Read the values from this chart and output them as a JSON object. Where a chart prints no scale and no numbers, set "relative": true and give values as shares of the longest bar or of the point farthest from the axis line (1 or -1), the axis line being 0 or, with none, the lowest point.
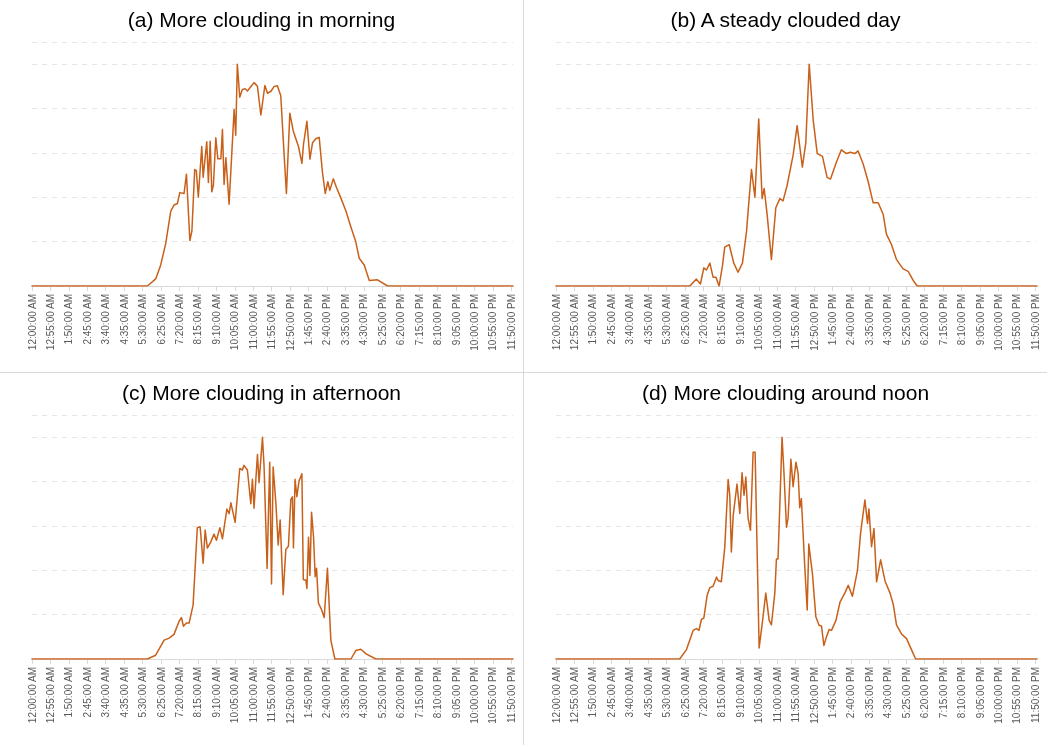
{
  "chart_data": [
    {
      "type": "line",
      "title": "(a) More clouding in morning",
      "relative": true,
      "grid": "y",
      "color": "#c8601a",
      "xlim": [
        0,
        23.9167
      ],
      "xticks": [
        {
          "value": 0,
          "label": "12:00:00 AM"
        },
        {
          "value": 0.9167,
          "label": "12:55:00 AM"
        },
        {
          "value": 1.8333,
          "label": "1:50:00 AM"
        },
        {
          "value": 2.75,
          "label": "2:45:00 AM"
        },
        {
          "value": 3.6667,
          "label": "3:40:00 AM"
        },
        {
          "value": 4.5833,
          "label": "4:35:00 AM"
        },
        {
          "value": 5.5,
          "label": "5:30:00 AM"
        },
        {
          "value": 6.4167,
          "label": "6:25:00 AM"
        },
        {
          "value": 7.3333,
          "label": "7:20:00 AM"
        },
        {
          "value": 8.25,
          "label": "8:15:00 AM"
        },
        {
          "value": 9.1667,
          "label": "9:10:00 AM"
        },
        {
          "value": 10.0833,
          "label": "10:05:00 AM"
        },
        {
          "value": 11,
          "label": "11:00:00 AM"
        },
        {
          "value": 11.9167,
          "label": "11:55:00 AM"
        },
        {
          "value": 12.8333,
          "label": "12:50:00 PM"
        },
        {
          "value": 13.75,
          "label": "1:45:00 PM"
        },
        {
          "value": 14.6667,
          "label": "2:40:00 PM"
        },
        {
          "value": 15.5833,
          "label": "3:35:00 PM"
        },
        {
          "value": 16.5,
          "label": "4:30:00 PM"
        },
        {
          "value": 17.4167,
          "label": "5:25:00 PM"
        },
        {
          "value": 18.3333,
          "label": "6:20:00 PM"
        },
        {
          "value": 19.25,
          "label": "7:15:00 PM"
        },
        {
          "value": 20.1667,
          "label": "8:10:00 PM"
        },
        {
          "value": 21.0833,
          "label": "9:05:00 PM"
        },
        {
          "value": 22,
          "label": "10:00:00 PM"
        },
        {
          "value": 22.9167,
          "label": "10:55:00 PM"
        },
        {
          "value": 23.8333,
          "label": "11:50:00 PM"
        }
      ],
      "x": [
        0,
        5.74,
        6.15,
        6.4,
        6.65,
        6.9,
        7.06,
        7.23,
        7.35,
        7.56,
        7.68,
        7.85,
        7.95,
        8.09,
        8.17,
        8.27,
        8.44,
        8.51,
        8.69,
        8.77,
        8.86,
        8.94,
        9.02,
        9.14,
        9.24,
        9.39,
        9.47,
        9.55,
        9.64,
        9.8,
        10.05,
        10.13,
        10.21,
        10.33,
        10.46,
        10.6,
        10.71,
        10.83,
        11.04,
        11.21,
        11.38,
        11.58,
        11.71,
        11.88,
        12.04,
        12.2,
        12.37,
        12.49,
        12.65,
        12.82,
        12.99,
        13.25,
        13.42,
        13.5,
        13.67,
        13.82,
        13.95,
        14.11,
        14.28,
        14.44,
        14.58,
        14.71,
        14.81,
        14.98,
        15.14,
        15.36,
        15.61,
        15.86,
        16.1,
        16.27,
        16.52,
        16.77,
        17.18,
        17.68,
        23.9167
      ],
      "values": [
        0,
        0,
        0.032,
        0.095,
        0.192,
        0.338,
        0.365,
        0.372,
        0.421,
        0.417,
        0.504,
        0.205,
        0.247,
        0.525,
        0.52,
        0.4,
        0.629,
        0.49,
        0.65,
        0.467,
        0.653,
        0.425,
        0.455,
        0.668,
        0.574,
        0.574,
        0.705,
        0.458,
        0.578,
        0.369,
        0.796,
        0.68,
        1.0,
        0.851,
        0.886,
        0.889,
        0.879,
        0.893,
        0.917,
        0.9,
        0.771,
        0.904,
        0.869,
        0.878,
        0.9,
        0.903,
        0.858,
        0.664,
        0.417,
        0.779,
        0.699,
        0.629,
        0.553,
        0.639,
        0.743,
        0.572,
        0.646,
        0.664,
        0.67,
        0.514,
        0.417,
        0.47,
        0.431,
        0.483,
        0.444,
        0.396,
        0.338,
        0.265,
        0.199,
        0.125,
        0.095,
        0.025,
        0.028,
        0,
        0
      ]
    },
    {
      "type": "line",
      "title": "(b) A steady clouded day",
      "relative": true,
      "grid": "y",
      "color": "#c8601a",
      "xlim": [
        0,
        23.9167
      ],
      "xticks": [
        {
          "value": 0,
          "label": "12:00:00 AM"
        },
        {
          "value": 0.9167,
          "label": "12:55:00 AM"
        },
        {
          "value": 1.8333,
          "label": "1:50:00 AM"
        },
        {
          "value": 2.75,
          "label": "2:45:00 AM"
        },
        {
          "value": 3.6667,
          "label": "3:40:00 AM"
        },
        {
          "value": 4.5833,
          "label": "4:35:00 AM"
        },
        {
          "value": 5.5,
          "label": "5:30:00 AM"
        },
        {
          "value": 6.4167,
          "label": "6:25:00 AM"
        },
        {
          "value": 7.3333,
          "label": "7:20:00 AM"
        },
        {
          "value": 8.25,
          "label": "8:15:00 AM"
        },
        {
          "value": 9.1667,
          "label": "9:10:00 AM"
        },
        {
          "value": 10.0833,
          "label": "10:05:00 AM"
        },
        {
          "value": 11,
          "label": "11:00:00 AM"
        },
        {
          "value": 11.9167,
          "label": "11:55:00 AM"
        },
        {
          "value": 12.8333,
          "label": "12:50:00 PM"
        },
        {
          "value": 13.75,
          "label": "1:45:00 PM"
        },
        {
          "value": 14.6667,
          "label": "2:40:00 PM"
        },
        {
          "value": 15.5833,
          "label": "3:35:00 PM"
        },
        {
          "value": 16.5,
          "label": "4:30:00 PM"
        },
        {
          "value": 17.4167,
          "label": "5:25:00 PM"
        },
        {
          "value": 18.3333,
          "label": "6:20:00 PM"
        },
        {
          "value": 19.25,
          "label": "7:15:00 PM"
        },
        {
          "value": 20.1667,
          "label": "8:10:00 PM"
        },
        {
          "value": 21.0833,
          "label": "9:05:00 PM"
        },
        {
          "value": 22,
          "label": "10:00:00 PM"
        },
        {
          "value": 22.9167,
          "label": "10:55:00 PM"
        },
        {
          "value": 23.8333,
          "label": "11:50:00 PM"
        }
      ],
      "x": [
        0,
        6.65,
        6.98,
        7.18,
        7.35,
        7.48,
        7.65,
        7.81,
        7.95,
        8.11,
        8.27,
        8.39,
        8.61,
        8.84,
        9.05,
        9.27,
        9.47,
        9.72,
        9.89,
        10.08,
        10.25,
        10.35,
        10.5,
        10.71,
        10.93,
        11.13,
        11.29,
        11.49,
        11.79,
        11.99,
        12.25,
        12.42,
        12.59,
        12.79,
        12.99,
        13.25,
        13.48,
        13.65,
        13.95,
        14.19,
        14.44,
        14.64,
        14.86,
        15.02,
        15.27,
        15.52,
        15.77,
        16.02,
        16.27,
        16.43,
        16.68,
        16.93,
        17.26,
        17.51,
        17.76,
        17.96,
        23.9167
      ],
      "values": [
        0,
        0,
        0.031,
        0.009,
        0.082,
        0.072,
        0.103,
        0.04,
        0.04,
        0,
        0.087,
        0.175,
        0.187,
        0.103,
        0.062,
        0.103,
        0.244,
        0.525,
        0.4,
        0.753,
        0.394,
        0.44,
        0.321,
        0.119,
        0.353,
        0.394,
        0.384,
        0.453,
        0.59,
        0.723,
        0.536,
        0.645,
        1.0,
        0.747,
        0.597,
        0.584,
        0.49,
        0.482,
        0.56,
        0.614,
        0.597,
        0.603,
        0.597,
        0.609,
        0.551,
        0.471,
        0.375,
        0.375,
        0.322,
        0.234,
        0.187,
        0.119,
        0.077,
        0.066,
        0.025,
        0,
        0
      ]
    },
    {
      "type": "line",
      "title": "(c) More clouding in afternoon",
      "relative": true,
      "grid": "y",
      "color": "#c8601a",
      "xlim": [
        0,
        23.9167
      ],
      "xticks": [
        {
          "value": 0,
          "label": "12:00:00 AM"
        },
        {
          "value": 0.9167,
          "label": "12:55:00 AM"
        },
        {
          "value": 1.8333,
          "label": "1:50:00 AM"
        },
        {
          "value": 2.75,
          "label": "2:45:00 AM"
        },
        {
          "value": 3.6667,
          "label": "3:40:00 AM"
        },
        {
          "value": 4.5833,
          "label": "4:35:00 AM"
        },
        {
          "value": 5.5,
          "label": "5:30:00 AM"
        },
        {
          "value": 6.4167,
          "label": "6:25:00 AM"
        },
        {
          "value": 7.3333,
          "label": "7:20:00 AM"
        },
        {
          "value": 8.25,
          "label": "8:15:00 AM"
        },
        {
          "value": 9.1667,
          "label": "9:10:00 AM"
        },
        {
          "value": 10.0833,
          "label": "10:05:00 AM"
        },
        {
          "value": 11,
          "label": "11:00:00 AM"
        },
        {
          "value": 11.9167,
          "label": "11:55:00 AM"
        },
        {
          "value": 12.8333,
          "label": "12:50:00 PM"
        },
        {
          "value": 13.75,
          "label": "1:45:00 PM"
        },
        {
          "value": 14.6667,
          "label": "2:40:00 PM"
        },
        {
          "value": 15.5833,
          "label": "3:35:00 PM"
        },
        {
          "value": 16.5,
          "label": "4:30:00 PM"
        },
        {
          "value": 17.4167,
          "label": "5:25:00 PM"
        },
        {
          "value": 18.3333,
          "label": "6:20:00 PM"
        },
        {
          "value": 19.25,
          "label": "7:15:00 PM"
        },
        {
          "value": 20.1667,
          "label": "8:10:00 PM"
        },
        {
          "value": 21.0833,
          "label": "9:05:00 PM"
        },
        {
          "value": 22,
          "label": "10:00:00 PM"
        },
        {
          "value": 22.9167,
          "label": "10:55:00 PM"
        },
        {
          "value": 23.8333,
          "label": "11:50:00 PM"
        }
      ],
      "x": [
        0,
        5.74,
        6.15,
        6.57,
        6.82,
        7.06,
        7.31,
        7.43,
        7.53,
        7.68,
        7.81,
        8.01,
        8.22,
        8.36,
        8.51,
        8.61,
        8.72,
        8.89,
        9.05,
        9.17,
        9.34,
        9.47,
        9.69,
        9.8,
        9.89,
        10.1,
        10.33,
        10.46,
        10.54,
        10.71,
        10.88,
        10.96,
        11.04,
        11.21,
        11.29,
        11.46,
        11.54,
        11.69,
        11.82,
        11.91,
        11.99,
        12.13,
        12.24,
        12.34,
        12.49,
        12.62,
        12.75,
        12.87,
        12.95,
        13.0,
        13.08,
        13.17,
        13.28,
        13.42,
        13.49,
        13.62,
        13.67,
        13.75,
        13.82,
        13.9,
        14.0,
        14.08,
        14.15,
        14.24,
        14.41,
        14.53,
        14.69,
        14.86,
        15.06,
        15.86,
        16.1,
        16.35,
        16.63,
        17.1,
        23.9167
      ],
      "values": [
        0,
        0,
        0.017,
        0.085,
        0.094,
        0.111,
        0.169,
        0.187,
        0.148,
        0.162,
        0.162,
        0.243,
        0.592,
        0.596,
        0.432,
        0.581,
        0.5,
        0.528,
        0.563,
        0.535,
        0.592,
        0.542,
        0.676,
        0.655,
        0.704,
        0.616,
        0.859,
        0.852,
        0.873,
        0.852,
        0.7,
        0.81,
        0.68,
        0.922,
        0.795,
        1.0,
        0.866,
        0.408,
        0.887,
        0.338,
        0.866,
        0.697,
        0.514,
        0.627,
        0.29,
        0.494,
        0.508,
        0.719,
        0.731,
        0.501,
        0.81,
        0.732,
        0.803,
        0.835,
        0.358,
        0.355,
        0.318,
        0.549,
        0.376,
        0.662,
        0.549,
        0.371,
        0.409,
        0.253,
        0.22,
        0.187,
        0.409,
        0.084,
        0,
        0,
        0.038,
        0.044,
        0.022,
        0,
        0
      ]
    },
    {
      "type": "line",
      "title": "(d) More clouding around noon",
      "relative": true,
      "grid": "y",
      "color": "#c8601a",
      "xlim": [
        0,
        23.9167
      ],
      "xticks": [
        {
          "value": 0,
          "label": "12:00:00 AM"
        },
        {
          "value": 0.9167,
          "label": "12:55:00 AM"
        },
        {
          "value": 1.8333,
          "label": "1:50:00 AM"
        },
        {
          "value": 2.75,
          "label": "2:45:00 AM"
        },
        {
          "value": 3.6667,
          "label": "3:40:00 AM"
        },
        {
          "value": 4.5833,
          "label": "4:35:00 AM"
        },
        {
          "value": 5.5,
          "label": "5:30:00 AM"
        },
        {
          "value": 6.4167,
          "label": "6:25:00 AM"
        },
        {
          "value": 7.3333,
          "label": "7:20:00 AM"
        },
        {
          "value": 8.25,
          "label": "8:15:00 AM"
        },
        {
          "value": 9.1667,
          "label": "9:10:00 AM"
        },
        {
          "value": 10.0833,
          "label": "10:05:00 AM"
        },
        {
          "value": 11,
          "label": "11:00:00 AM"
        },
        {
          "value": 11.9167,
          "label": "11:55:00 AM"
        },
        {
          "value": 12.8333,
          "label": "12:50:00 PM"
        },
        {
          "value": 13.75,
          "label": "1:45:00 PM"
        },
        {
          "value": 14.6667,
          "label": "2:40:00 PM"
        },
        {
          "value": 15.5833,
          "label": "3:35:00 PM"
        },
        {
          "value": 16.5,
          "label": "4:30:00 PM"
        },
        {
          "value": 17.4167,
          "label": "5:25:00 PM"
        },
        {
          "value": 18.3333,
          "label": "6:20:00 PM"
        },
        {
          "value": 19.25,
          "label": "7:15:00 PM"
        },
        {
          "value": 20.1667,
          "label": "8:10:00 PM"
        },
        {
          "value": 21.0833,
          "label": "9:05:00 PM"
        },
        {
          "value": 22,
          "label": "10:00:00 PM"
        },
        {
          "value": 22.9167,
          "label": "10:55:00 PM"
        },
        {
          "value": 23.8333,
          "label": "11:50:00 PM"
        }
      ],
      "x": [
        0,
        6.15,
        6.48,
        6.82,
        6.98,
        7.11,
        7.23,
        7.35,
        7.51,
        7.65,
        7.81,
        7.98,
        8.06,
        8.22,
        8.39,
        8.56,
        8.64,
        8.72,
        8.81,
        9.0,
        9.14,
        9.25,
        9.35,
        9.44,
        9.55,
        9.67,
        9.8,
        9.9,
        10.1,
        10.26,
        10.43,
        10.6,
        10.71,
        10.88,
        10.96,
        11.04,
        11.13,
        11.24,
        11.33,
        11.46,
        11.54,
        11.68,
        11.79,
        11.93,
        12.04,
        12.12,
        12.2,
        12.37,
        12.49,
        12.57,
        12.75,
        12.92,
        13.08,
        13.2,
        13.32,
        13.42,
        13.58,
        13.7,
        13.92,
        14.12,
        14.36,
        14.53,
        14.74,
        14.99,
        15.14,
        15.36,
        15.49,
        15.56,
        15.69,
        15.81,
        15.94,
        16.14,
        16.36,
        16.61,
        16.77,
        16.93,
        17.18,
        17.43,
        17.68,
        17.88,
        23.9167
      ],
      "values": [
        0,
        0,
        0.041,
        0.129,
        0.137,
        0.129,
        0.178,
        0.184,
        0.285,
        0.322,
        0.328,
        0.369,
        0.354,
        0.348,
        0.502,
        0.809,
        0.738,
        0.482,
        0.646,
        0.789,
        0.656,
        0.84,
        0.738,
        0.82,
        0.635,
        0.58,
        0.932,
        0.932,
        0.05,
        0.164,
        0.297,
        0.174,
        0.154,
        0.297,
        0.451,
        0.451,
        0.697,
        1.0,
        0.85,
        0.594,
        0.635,
        0.9,
        0.777,
        0.887,
        0.836,
        0.682,
        0.723,
        0.416,
        0.221,
        0.518,
        0.385,
        0.19,
        0.152,
        0.149,
        0.061,
        0.092,
        0.133,
        0.129,
        0.174,
        0.256,
        0.297,
        0.332,
        0.283,
        0.4,
        0.564,
        0.717,
        0.611,
        0.676,
        0.506,
        0.588,
        0.348,
        0.447,
        0.352,
        0.297,
        0.246,
        0.154,
        0.113,
        0.092,
        0.041,
        0,
        0
      ]
    }
  ]
}
